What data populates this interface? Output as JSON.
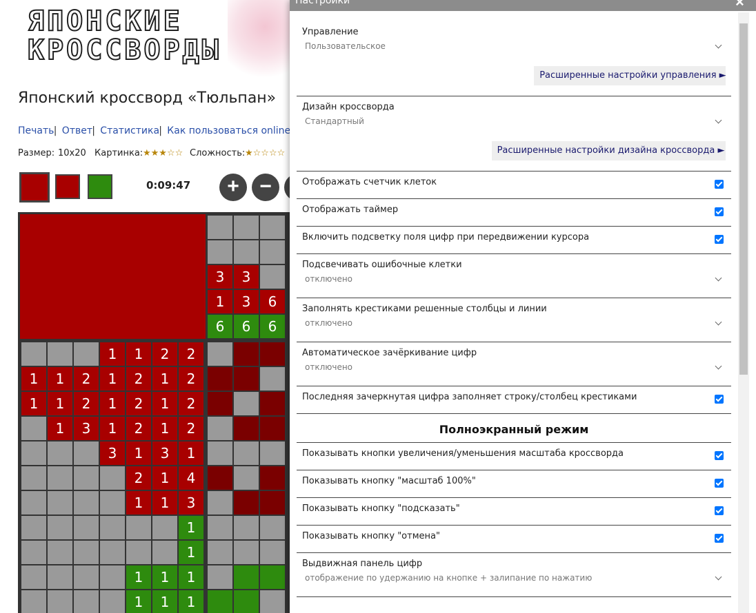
{
  "page": {
    "logo": [
      "ЯПОНСКИЕ",
      "КРОССВОРДЫ"
    ],
    "title": "Японский кроссворд «Тюльпан»",
    "links": [
      "Печать",
      "Ответ",
      "Статистика",
      "Как пользоваться online"
    ],
    "info": {
      "size_label": "Размер:",
      "size": "10x20",
      "picture_label": "Картинка:",
      "picture_stars": "★★★☆☆",
      "difficulty_label": "Сложность:",
      "difficulty_stars": "★☆☆☆☆"
    },
    "timer": "0:09:47",
    "top_clues": {
      "rows": [
        [
          null,
          null,
          null
        ],
        [
          null,
          null,
          null
        ],
        [
          3,
          3,
          null
        ],
        [
          1,
          3,
          6
        ],
        [
          6,
          6,
          6
        ]
      ],
      "colors": [
        "#a80000",
        "#a80000",
        "#a80000",
        "#a80000",
        "#2e8b0e"
      ]
    },
    "row_clues": {
      "rows": [
        [
          null,
          null,
          null,
          1,
          1,
          2,
          2
        ],
        [
          1,
          1,
          2,
          1,
          2,
          1,
          2
        ],
        [
          1,
          1,
          2,
          1,
          2,
          1,
          2
        ],
        [
          null,
          1,
          3,
          1,
          2,
          1,
          2
        ],
        [
          null,
          null,
          null,
          3,
          1,
          3,
          1
        ],
        [
          null,
          null,
          null,
          null,
          2,
          1,
          4
        ],
        [
          null,
          null,
          null,
          null,
          1,
          1,
          3
        ],
        [
          null,
          null,
          null,
          null,
          null,
          null,
          1
        ],
        [
          null,
          null,
          null,
          null,
          null,
          null,
          1
        ],
        [
          null,
          null,
          null,
          null,
          1,
          1,
          1
        ],
        [
          null,
          null,
          null,
          null,
          1,
          1,
          1
        ]
      ],
      "colors": [
        "#a80000",
        "#a80000",
        "#a80000",
        "#a80000",
        "#a80000",
        "#a80000",
        "#a80000",
        "#2e8b0e",
        "#2e8b0e",
        "#2e8b0e",
        "#2e8b0e"
      ]
    }
  },
  "dialog": {
    "title": "Настройки",
    "close": "×",
    "items": [
      {
        "label": "Управление",
        "value": "Пользовательское",
        "button": "Расширенные настройки управления ►"
      },
      {
        "label": "Дизайн кроссворда",
        "value": "Стандартный",
        "button": "Расширенные настройки дизайна кроссворда ►"
      },
      {
        "label": "Отображать счетчик клеток",
        "checked": true
      },
      {
        "label": "Отображать таймер",
        "checked": true
      },
      {
        "label": "Включить подсветку поля цифр при передвижении курсора",
        "checked": true
      },
      {
        "label": "Подсвечивать ошибочные клетки",
        "value": "отключено"
      },
      {
        "label": "Заполнять крестиками решенные столбцы и линии",
        "value": "отключено"
      },
      {
        "label": "Автоматическое зачёркивание цифр",
        "value": "отключено"
      },
      {
        "label": "Последняя зачеркнутая цифра заполняет строку/столбец крестиками",
        "checked": true
      },
      {
        "heading": "Полноэкранный режим"
      },
      {
        "label": "Показывать кнопки увеличения/уменьшения масштаба кроссворда",
        "checked": true
      },
      {
        "label": "Показывать кнопку \"масштаб 100%\"",
        "checked": true
      },
      {
        "label": "Показывать кнопку \"подсказать\"",
        "checked": true
      },
      {
        "label": "Показывать кнопку \"отмена\"",
        "checked": true
      },
      {
        "label": "Выдвижная панель цифр",
        "value": "отображение по удержанию на кнопке + залипание по нажатию"
      }
    ]
  }
}
